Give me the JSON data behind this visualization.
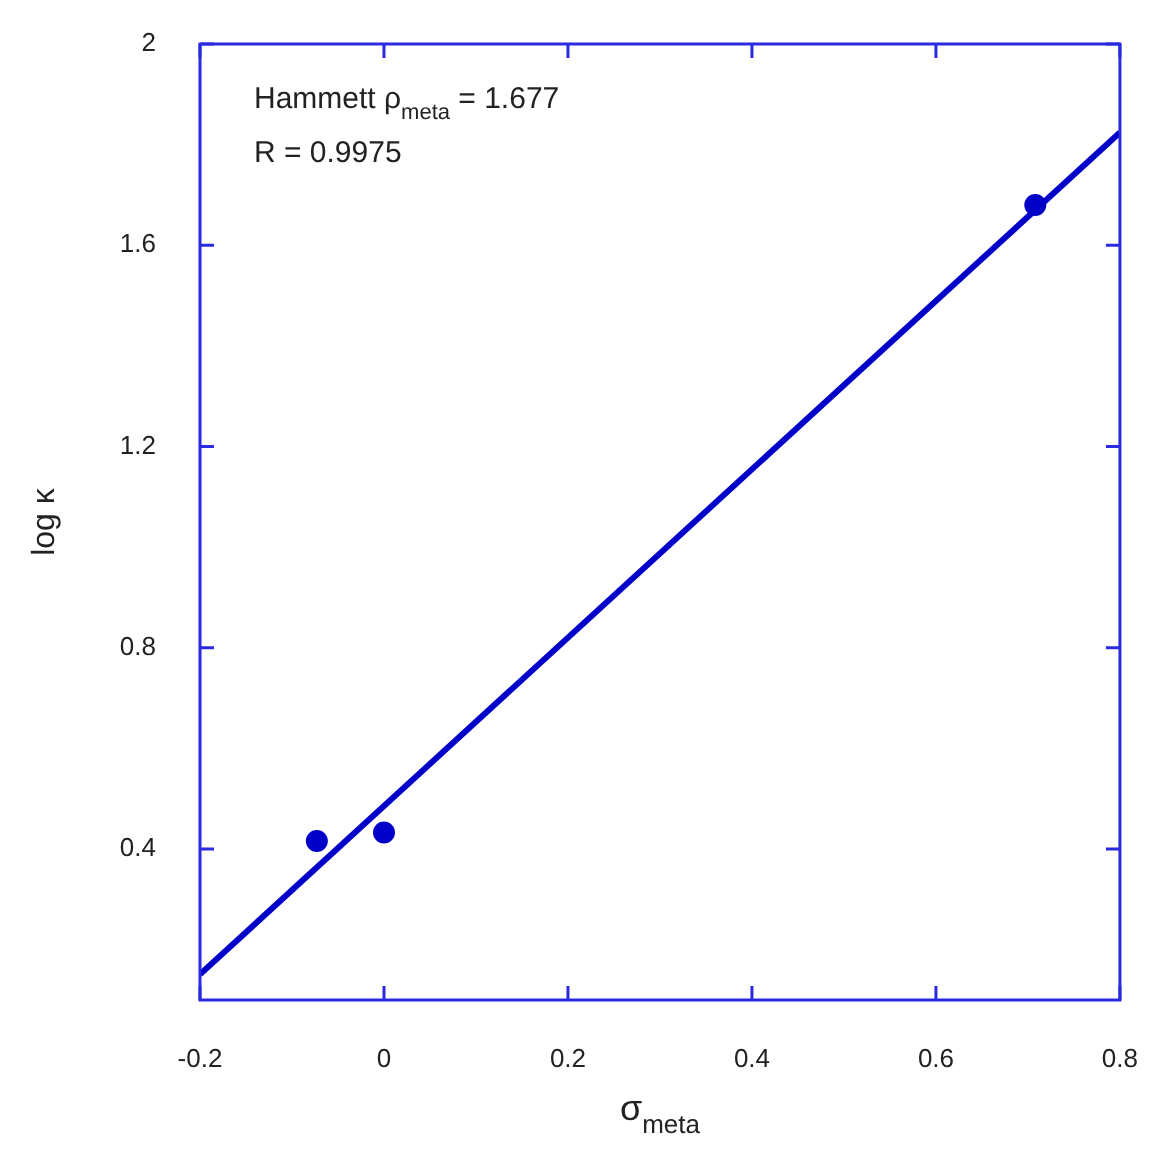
{
  "chart_data": {
    "type": "scatter",
    "xlabel": "σ$_{meta}$",
    "ylabel": "log κ",
    "annotations": [
      "Hammett ρ$_{meta}$ = 1.677",
      "R = 0.9975"
    ],
    "xlim": [
      -0.2,
      0.8
    ],
    "xticks": [
      -0.2,
      0,
      0.2,
      0.4,
      0.6,
      0.8
    ],
    "ylim": [
      0.1,
      2
    ],
    "yticks": [
      0.4,
      0.8,
      1.2,
      1.6,
      2
    ],
    "grid": false,
    "series": [
      {
        "marker": "circle",
        "color": "#0000c8",
        "x": [
          -0.073,
          0,
          0.708
        ],
        "values": [
          0.416,
          0.433,
          1.68
        ]
      },
      {
        "type": "line",
        "color": "#0000c8",
        "x": [
          -0.2,
          0.8
        ],
        "values": [
          0.151,
          1.824
        ],
        "line_style": "solid"
      }
    ]
  }
}
